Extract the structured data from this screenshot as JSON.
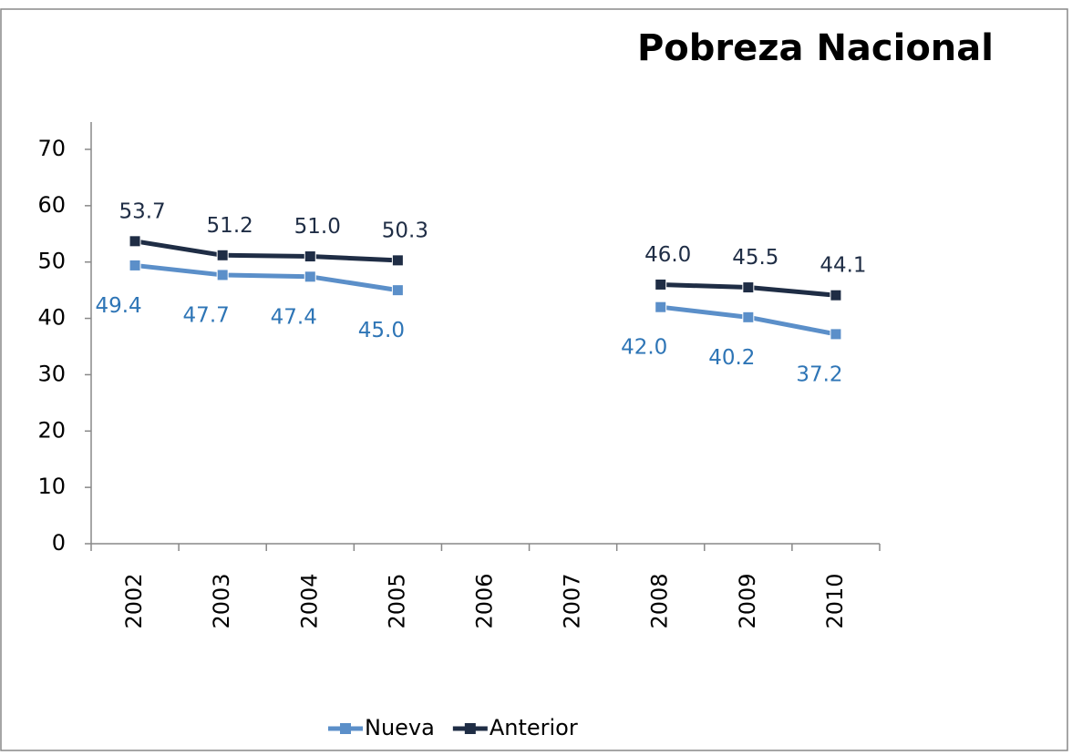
{
  "chart_data": {
    "type": "line",
    "title": "Pobreza Nacional",
    "categories": [
      "2002",
      "2003",
      "2004",
      "2005",
      "2006",
      "2007",
      "2008",
      "2009",
      "2010"
    ],
    "series": [
      {
        "name": "Nueva",
        "color": "#5b8fc9",
        "label_color": "#2e75b6",
        "values": [
          49.4,
          47.7,
          47.4,
          45.0,
          null,
          null,
          42.0,
          40.2,
          37.2
        ],
        "value_labels": [
          "49.4",
          "47.7",
          "47.4",
          "45.0",
          null,
          null,
          "42.0",
          "40.2",
          "37.2"
        ]
      },
      {
        "name": "Anterior",
        "color": "#1f2d45",
        "label_color": "#1f2d45",
        "values": [
          53.7,
          51.2,
          51.0,
          50.3,
          null,
          null,
          46.0,
          45.5,
          44.1
        ],
        "value_labels": [
          "53.7",
          "51.2",
          "51.0",
          "50.3",
          null,
          null,
          "46.0",
          "45.5",
          "44.1"
        ]
      }
    ],
    "ylim": [
      0,
      70
    ],
    "yticks": [
      0,
      10,
      20,
      30,
      40,
      50,
      60,
      70
    ],
    "grid": false,
    "legend": "bottom"
  }
}
